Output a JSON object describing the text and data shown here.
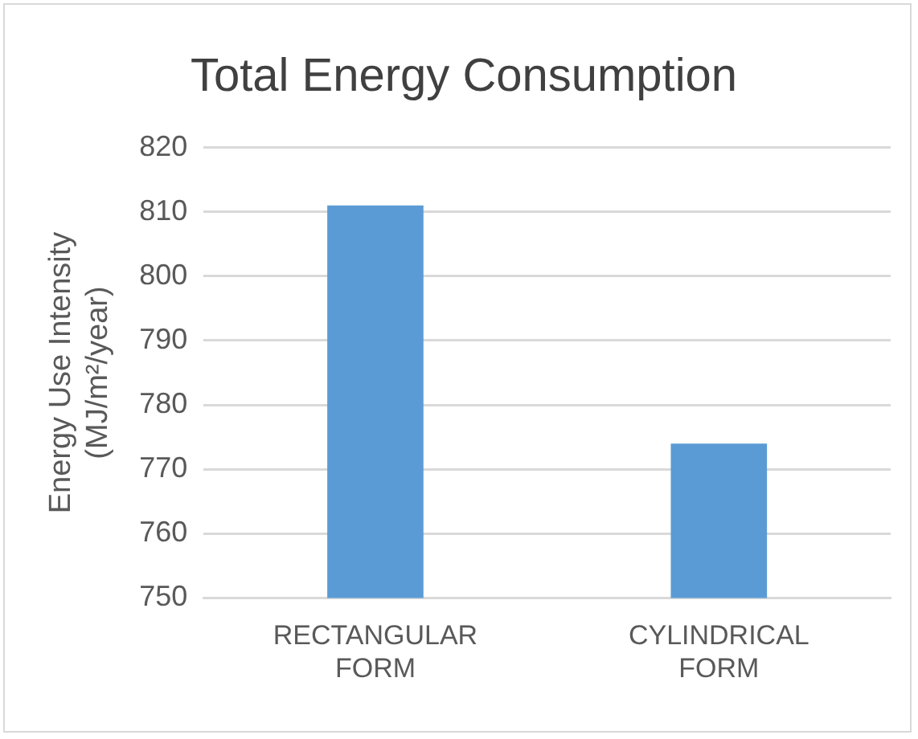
{
  "chart_data": {
    "type": "bar",
    "title": "Total Energy Consumption",
    "ylabel": "Energy Use Intensity (MJ/m²/year)",
    "categories": [
      "RECTANGULAR FORM",
      "CYLINDRICAL FORM"
    ],
    "values": [
      811,
      774
    ],
    "color": "#5b9bd5",
    "ylim": [
      750,
      820
    ],
    "yticks": [
      750,
      760,
      770,
      780,
      790,
      800,
      810,
      820
    ],
    "grid": "y"
  }
}
